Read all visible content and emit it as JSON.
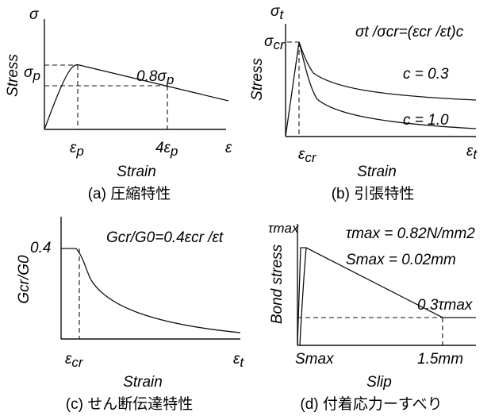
{
  "panel_a": {
    "y_symbol": "σ",
    "y_label": "Stress",
    "peak_label_base": "σ",
    "peak_label_sub": "p",
    "residual_label": "0.8σ",
    "residual_label_sub": "p",
    "x_peak_base": "ε",
    "x_peak_sub": "p",
    "x_four_base": "4ε",
    "x_four_sub": "p",
    "x_symbol": "ε",
    "x_label": "Strain",
    "caption": "(a)  圧縮特性"
  },
  "panel_b": {
    "y_symbol_base": "σ",
    "y_symbol_sub": "t",
    "formula": "σt /σcr=(εcr /εt)c",
    "y_label": "Stress",
    "peak_base": "σ",
    "peak_sub": "cr",
    "curve1_label": "c = 0.3",
    "curve2_label": "c = 1.0",
    "x_peak_base": "ε",
    "x_peak_sub": "cr",
    "x_symbol_base": "ε",
    "x_symbol_sub": "t",
    "x_label": "Strain",
    "caption": "(b)  引張特性"
  },
  "panel_c": {
    "y_label": "Gcr/G0",
    "peak_value": "0.4",
    "formula": "Gcr/G0=0.4εcr /εt",
    "x_peak_base": "ε",
    "x_peak_sub": "cr",
    "x_symbol_base": "ε",
    "x_symbol_sub": "t",
    "x_label": "Strain",
    "caption": "(c)  せん断伝達特性"
  },
  "panel_d": {
    "y_label": "Bond stress",
    "y_symbol": "τmax",
    "tau_max_text": "τmax = 0.82N/mm2",
    "s_max_text": "Smax = 0.02mm",
    "residual_label": "0.3τmax",
    "x_smax": "Smax",
    "x_end": "1.5mm",
    "x_label": "Slip",
    "caption": "(d)  付着応力ーすべり"
  }
}
